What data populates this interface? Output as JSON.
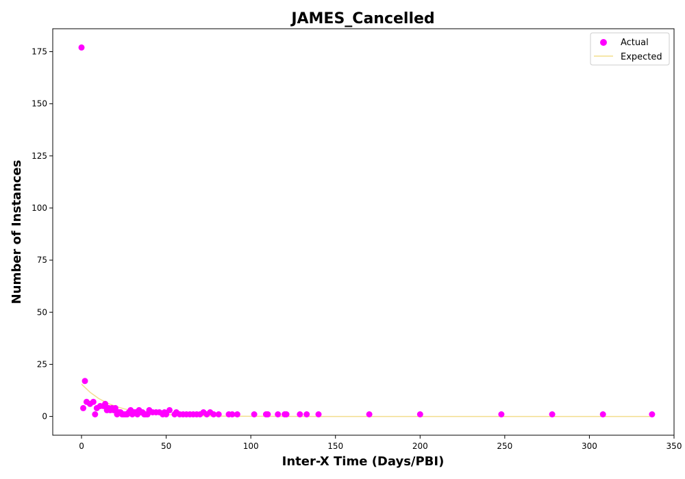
{
  "chart_data": {
    "type": "scatter",
    "title": "JAMES_Cancelled",
    "xlabel": "Inter-X Time (Days/PBI)",
    "ylabel": "Number of Instances",
    "xlim": [
      -17,
      350
    ],
    "ylim": [
      -9,
      186
    ],
    "xticks": [
      0,
      50,
      100,
      150,
      200,
      250,
      300,
      350
    ],
    "yticks": [
      0,
      25,
      50,
      75,
      100,
      125,
      150,
      175
    ],
    "grid": false,
    "legend_position": "top-right",
    "series": [
      {
        "name": "Actual",
        "kind": "scatter",
        "color": "#ff00ff",
        "x": [
          0,
          1,
          2,
          3,
          5,
          7,
          8,
          9,
          11,
          13,
          14,
          15,
          16,
          17,
          18,
          19,
          20,
          21,
          22,
          23,
          24,
          25,
          26,
          27,
          28,
          29,
          30,
          31,
          32,
          33,
          34,
          35,
          36,
          37,
          38,
          39,
          40,
          42,
          44,
          46,
          48,
          49,
          50,
          52,
          55,
          56,
          58,
          60,
          62,
          64,
          66,
          68,
          70,
          72,
          74,
          76,
          78,
          81,
          87,
          89,
          92,
          102,
          109,
          110,
          116,
          120,
          121,
          129,
          133,
          140,
          170,
          200,
          248,
          278,
          308,
          337
        ],
        "y": [
          177,
          4,
          17,
          7,
          6,
          7,
          1,
          4,
          5,
          5,
          6,
          3,
          4,
          3,
          4,
          3,
          4,
          1,
          2,
          2,
          1,
          1,
          1,
          1,
          2,
          3,
          1,
          2,
          2,
          1,
          3,
          2,
          2,
          1,
          1,
          1,
          3,
          2,
          2,
          2,
          1,
          2,
          1,
          3,
          1,
          2,
          1,
          1,
          1,
          1,
          1,
          1,
          1,
          2,
          1,
          2,
          1,
          1,
          1,
          1,
          1,
          1,
          1,
          1,
          1,
          1,
          1,
          1,
          1,
          1,
          1,
          1,
          1,
          1,
          1,
          1
        ]
      },
      {
        "name": "Expected",
        "kind": "line",
        "color": "#f2dd8c",
        "x": [
          0,
          5,
          10,
          15,
          20,
          25,
          30,
          35,
          40,
          45,
          50,
          55,
          60,
          65,
          70,
          75,
          80,
          90,
          100,
          120,
          140,
          170,
          200,
          250,
          300,
          337
        ],
        "y": [
          15.5,
          11.6,
          8.7,
          6.5,
          4.9,
          3.7,
          2.8,
          2.1,
          1.6,
          1.2,
          0.9,
          0.7,
          0.5,
          0.4,
          0.3,
          0.2,
          0.15,
          0.09,
          0.05,
          0.02,
          0.01,
          0,
          0,
          0,
          0,
          0
        ]
      }
    ]
  }
}
